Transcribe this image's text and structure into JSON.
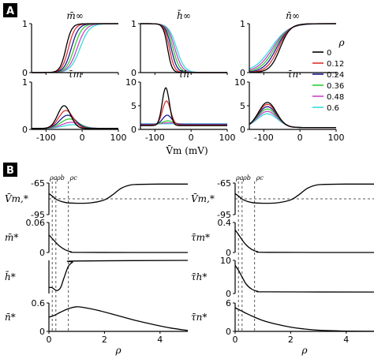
{
  "panel_labels": {
    "a": "A",
    "b": "B"
  },
  "colors": {
    "panel_label_bg": "#000000",
    "panel_label_fg": "#ffffff",
    "dashed": "#555555",
    "curve_b": "#000000"
  },
  "chart_data": [
    {
      "panel": "A",
      "type": "line",
      "series_legend": {
        "title": "ρ",
        "entries": [
          {
            "label": "0",
            "color": "#000000"
          },
          {
            "label": "0.12",
            "color": "#e03030"
          },
          {
            "label": "0.24",
            "color": "#1a1a99"
          },
          {
            "label": "0.36",
            "color": "#33cc33"
          },
          {
            "label": "0.48",
            "color": "#cc44cc"
          },
          {
            "label": "0.6",
            "color": "#33dddd"
          }
        ]
      },
      "shared_xlabel": "V̄m (mV)",
      "subplots": [
        {
          "id": "m_inf",
          "title": "m̄∞",
          "kind": "sigmoid_up",
          "xlim": [
            -140,
            100
          ],
          "ylim": [
            0,
            1
          ],
          "xticks": [
            "-100",
            "0",
            "100"
          ],
          "yticks": [
            "0",
            "1"
          ],
          "show_xticks": false,
          "params": {
            "v_half": [
              -45,
              -38,
              -30,
              -22,
              -14,
              -6
            ],
            "slope": [
              8,
              9,
              10,
              11,
              12,
              13
            ]
          }
        },
        {
          "id": "h_inf",
          "title": "h̄∞",
          "kind": "sigmoid_down",
          "xlim": [
            -140,
            100
          ],
          "ylim": [
            0,
            1
          ],
          "xticks": [
            "-100",
            "0",
            "100"
          ],
          "yticks": [
            "0",
            "1"
          ],
          "show_xticks": false,
          "params": {
            "v_half": [
              -65,
              -60,
              -55,
              -50,
              -45,
              -40
            ],
            "slope": [
              6,
              7,
              8,
              9,
              10,
              11
            ]
          }
        },
        {
          "id": "n_inf",
          "title": "n̄∞",
          "kind": "sigmoid_up",
          "xlim": [
            -140,
            100
          ],
          "ylim": [
            0,
            1
          ],
          "xticks": [
            "-100",
            "0",
            "100"
          ],
          "yticks": [
            "0",
            "1"
          ],
          "show_xticks": false,
          "params": {
            "v_half": [
              -55,
              -60,
              -65,
              -70,
              -75,
              -80
            ],
            "slope": [
              14,
              16,
              18,
              20,
              22,
              24
            ]
          }
        },
        {
          "id": "tau_m",
          "title": "τ̄m",
          "kind": "bump",
          "xlim": [
            -140,
            100
          ],
          "ylim": [
            0,
            1
          ],
          "xticks": [
            "-100",
            "0",
            "100"
          ],
          "yticks": [
            "0",
            "1"
          ],
          "show_xticks": true,
          "params": {
            "center": [
              -50,
              -45,
              -40,
              -35,
              -30,
              -25
            ],
            "peak": [
              0.5,
              0.4,
              0.3,
              0.22,
              0.15,
              0.1
            ],
            "width": [
              25,
              28,
              31,
              34,
              37,
              40
            ],
            "base": [
              0.02,
              0.02,
              0.02,
              0.02,
              0.02,
              0.02
            ]
          }
        },
        {
          "id": "tau_h",
          "title": "τ̄h",
          "kind": "bump",
          "xlim": [
            -140,
            100
          ],
          "ylim": [
            0,
            10
          ],
          "xticks": [
            "-100",
            "0",
            "100"
          ],
          "yticks": [
            "0",
            "5",
            "10"
          ],
          "show_xticks": true,
          "params": {
            "center": [
              -70,
              -68,
              -66,
              -64,
              -62,
              -60
            ],
            "peak": [
              8.8,
              6.0,
              3.0,
              1.8,
              1.4,
              1.2
            ],
            "width": [
              14,
              16,
              18,
              22,
              26,
              30
            ],
            "base": [
              0.8,
              0.9,
              1.0,
              1.0,
              1.1,
              1.2
            ]
          }
        },
        {
          "id": "tau_n",
          "title": "τ̄n",
          "kind": "bump",
          "xlim": [
            -140,
            100
          ],
          "ylim": [
            0,
            10
          ],
          "xticks": [
            "-100",
            "0",
            "100"
          ],
          "yticks": [
            "0",
            "5",
            "10"
          ],
          "show_xticks": true,
          "params": {
            "center": [
              -90,
              -90,
              -90,
              -90,
              -90,
              -90
            ],
            "peak": [
              5.7,
              5.3,
              4.8,
              4.3,
              3.8,
              3.3
            ],
            "width": [
              35,
              36,
              37,
              38,
              39,
              40
            ],
            "base": [
              0.4,
              0.4,
              0.4,
              0.4,
              0.4,
              0.4
            ]
          }
        }
      ]
    },
    {
      "panel": "B",
      "type": "line",
      "xlabel": "ρ",
      "xlim": [
        0,
        5
      ],
      "xticks": [
        "0",
        "2",
        "4"
      ],
      "rho_markers": {
        "labels": [
          "ρa",
          "ρb",
          "ρc"
        ],
        "values": [
          0.12,
          0.25,
          0.7
        ]
      },
      "columns": [
        {
          "side": "left",
          "rows": [
            {
              "label": "V̄m,*",
              "ylim": [
                -95,
                -65
              ],
              "yticks": [
                "-65",
                "-95"
              ],
              "hline": -80,
              "kind": "vm",
              "points": [
                [
                  0,
                  -75
                ],
                [
                  0.15,
                  -78
                ],
                [
                  0.3,
                  -81
                ],
                [
                  0.6,
                  -83.5
                ],
                [
                  1.0,
                  -84.2
                ],
                [
                  1.5,
                  -83.8
                ],
                [
                  2.0,
                  -81
                ],
                [
                  2.3,
                  -76
                ],
                [
                  2.6,
                  -70
                ],
                [
                  2.9,
                  -67
                ],
                [
                  3.2,
                  -66.3
                ],
                [
                  4.0,
                  -66
                ],
                [
                  5.0,
                  -66
                ]
              ]
            },
            {
              "label": "m̄*",
              "ylim": [
                0,
                0.06
              ],
              "yticks": [
                "0.06",
                "0"
              ],
              "kind": "decay",
              "points": [
                [
                  0,
                  0.035
                ],
                [
                  0.12,
                  0.028
                ],
                [
                  0.25,
                  0.02
                ],
                [
                  0.4,
                  0.012
                ],
                [
                  0.6,
                  0.005
                ],
                [
                  0.8,
                  0.0015
                ],
                [
                  1.2,
                  0.0002
                ],
                [
                  5,
                  0
                ]
              ]
            },
            {
              "label": "h̄*",
              "ylim": [
                0.45,
                1.0
              ],
              "yticks": [],
              "kind": "dip",
              "points": [
                [
                  0,
                  0.55
                ],
                [
                  0.1,
                  0.55
                ],
                [
                  0.2,
                  0.52
                ],
                [
                  0.3,
                  0.5
                ],
                [
                  0.42,
                  0.55
                ],
                [
                  0.55,
                  0.72
                ],
                [
                  0.7,
                  0.9
                ],
                [
                  0.85,
                  0.97
                ],
                [
                  1.0,
                  0.99
                ],
                [
                  5,
                  1.0
                ]
              ]
            },
            {
              "label": "n̄*",
              "ylim": [
                0,
                0.6
              ],
              "yticks": [
                "0.6",
                "0"
              ],
              "kind": "hump",
              "points": [
                [
                  0,
                  0.3
                ],
                [
                  0.2,
                  0.34
                ],
                [
                  0.4,
                  0.4
                ],
                [
                  0.7,
                  0.48
                ],
                [
                  1.0,
                  0.52
                ],
                [
                  1.3,
                  0.5
                ],
                [
                  1.8,
                  0.44
                ],
                [
                  2.5,
                  0.33
                ],
                [
                  3.2,
                  0.22
                ],
                [
                  3.8,
                  0.14
                ],
                [
                  4.4,
                  0.07
                ],
                [
                  5.0,
                  0.02
                ]
              ]
            }
          ]
        },
        {
          "side": "right",
          "rows": [
            {
              "label": "V̄m,*",
              "ylim": [
                -95,
                -65
              ],
              "yticks": [
                "-65",
                "-95"
              ],
              "hline": -80,
              "kind": "vm",
              "points": [
                [
                  0,
                  -75
                ],
                [
                  0.15,
                  -78
                ],
                [
                  0.3,
                  -81
                ],
                [
                  0.6,
                  -83.5
                ],
                [
                  1.0,
                  -84.2
                ],
                [
                  1.5,
                  -83.8
                ],
                [
                  2.0,
                  -81
                ],
                [
                  2.3,
                  -76
                ],
                [
                  2.6,
                  -70
                ],
                [
                  2.9,
                  -67
                ],
                [
                  3.2,
                  -66.3
                ],
                [
                  4.0,
                  -66
                ],
                [
                  5.0,
                  -66
                ]
              ]
            },
            {
              "label": "τ̄m*",
              "ylim": [
                0,
                0.4
              ],
              "yticks": [
                "0.4",
                "0"
              ],
              "kind": "decay",
              "points": [
                [
                  0,
                  0.3
                ],
                [
                  0.12,
                  0.24
                ],
                [
                  0.25,
                  0.17
                ],
                [
                  0.4,
                  0.1
                ],
                [
                  0.6,
                  0.04
                ],
                [
                  0.8,
                  0.012
                ],
                [
                  1.2,
                  0.002
                ],
                [
                  5,
                  0
                ]
              ]
            },
            {
              "label": "τ̄h*",
              "ylim": [
                0,
                10
              ],
              "yticks": [
                "10",
                "0"
              ],
              "kind": "decay",
              "points": [
                [
                  0,
                  8.5
                ],
                [
                  0.12,
                  7.0
                ],
                [
                  0.25,
                  5.0
                ],
                [
                  0.4,
                  2.8
                ],
                [
                  0.6,
                  1.3
                ],
                [
                  0.8,
                  0.7
                ],
                [
                  1.2,
                  0.5
                ],
                [
                  5,
                  0.45
                ]
              ]
            },
            {
              "label": "τ̄n*",
              "ylim": [
                0,
                6
              ],
              "yticks": [
                "6",
                "0"
              ],
              "kind": "decay",
              "points": [
                [
                  0,
                  5.0
                ],
                [
                  0.2,
                  4.4
                ],
                [
                  0.4,
                  3.8
                ],
                [
                  0.7,
                  3.0
                ],
                [
                  1.0,
                  2.3
                ],
                [
                  1.5,
                  1.5
                ],
                [
                  2.0,
                  0.9
                ],
                [
                  2.5,
                  0.5
                ],
                [
                  3.0,
                  0.25
                ],
                [
                  4.0,
                  0.07
                ],
                [
                  5.0,
                  0.02
                ]
              ]
            }
          ]
        }
      ]
    }
  ]
}
